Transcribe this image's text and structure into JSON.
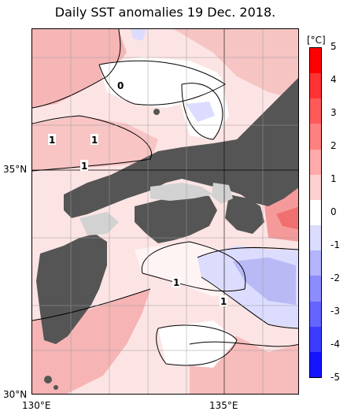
{
  "title": "Daily SST anomalies 19 Dec. 2018.",
  "axes": {
    "y_labels": [
      "35°N",
      "30°N"
    ],
    "x_labels": [
      "130°E",
      "135°E"
    ]
  },
  "contour_labels": [
    "0",
    "1",
    "1",
    "1",
    "1",
    "1"
  ],
  "colorbar": {
    "unit": "[°C]",
    "ticks": [
      "5",
      "4",
      "3",
      "2",
      "1",
      "0",
      "-1",
      "-2",
      "-3",
      "-4",
      "-5"
    ],
    "colors": [
      "#ff0000",
      "#ff3333",
      "#ff5a5a",
      "#ff8080",
      "#ffaaaa",
      "#ffd0d0",
      "#ffffff",
      "#dcdcff",
      "#b4b4ff",
      "#8c8cff",
      "#6464ff",
      "#3c3cff",
      "#1414ff"
    ]
  },
  "colors": {
    "land": "#555555",
    "lake": "#d2d2d2",
    "warm_light": "#fde2e2",
    "warm_mid": "#f8b8b8",
    "cool_light": "#dcdcff",
    "cool_mid": "#b9b9f5"
  }
}
